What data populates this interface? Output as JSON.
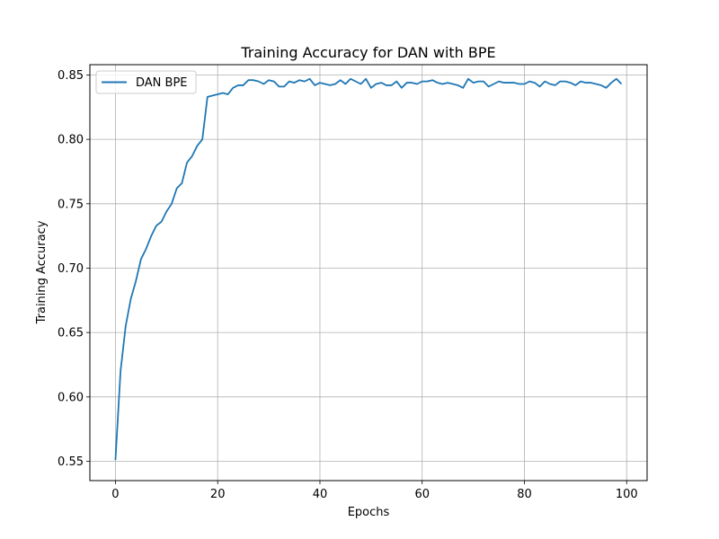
{
  "chart_data": {
    "type": "line",
    "title": "Training Accuracy for DAN with BPE",
    "xlabel": "Epochs",
    "ylabel": "Training Accuracy",
    "xlim": [
      -5,
      104
    ],
    "ylim": [
      0.535,
      0.858
    ],
    "xticks": [
      0,
      20,
      40,
      60,
      80,
      100
    ],
    "yticks": [
      0.55,
      0.6,
      0.65,
      0.7,
      0.75,
      0.8,
      0.85
    ],
    "grid": true,
    "legend_position": "top-left",
    "series": [
      {
        "name": "DAN BPE",
        "color": "#1f77b4",
        "x": [
          0,
          1,
          2,
          3,
          4,
          5,
          6,
          7,
          8,
          9,
          10,
          11,
          12,
          13,
          14,
          15,
          16,
          17,
          18,
          19,
          20,
          21,
          22,
          23,
          24,
          25,
          26,
          27,
          28,
          29,
          30,
          31,
          32,
          33,
          34,
          35,
          36,
          37,
          38,
          39,
          40,
          41,
          42,
          43,
          44,
          45,
          46,
          47,
          48,
          49,
          50,
          51,
          52,
          53,
          54,
          55,
          56,
          57,
          58,
          59,
          60,
          61,
          62,
          63,
          64,
          65,
          66,
          67,
          68,
          69,
          70,
          71,
          72,
          73,
          74,
          75,
          76,
          77,
          78,
          79,
          80,
          81,
          82,
          83,
          84,
          85,
          86,
          87,
          88,
          89,
          90,
          91,
          92,
          93,
          94,
          95,
          96,
          97,
          98,
          99
        ],
        "values": [
          0.551,
          0.62,
          0.655,
          0.676,
          0.69,
          0.707,
          0.715,
          0.725,
          0.733,
          0.736,
          0.744,
          0.75,
          0.762,
          0.766,
          0.782,
          0.787,
          0.795,
          0.8,
          0.833,
          0.834,
          0.835,
          0.836,
          0.835,
          0.84,
          0.842,
          0.842,
          0.846,
          0.846,
          0.845,
          0.843,
          0.846,
          0.845,
          0.841,
          0.841,
          0.845,
          0.844,
          0.846,
          0.845,
          0.847,
          0.842,
          0.844,
          0.843,
          0.842,
          0.843,
          0.846,
          0.843,
          0.847,
          0.845,
          0.843,
          0.847,
          0.84,
          0.843,
          0.844,
          0.842,
          0.842,
          0.845,
          0.84,
          0.844,
          0.844,
          0.843,
          0.845,
          0.845,
          0.846,
          0.844,
          0.843,
          0.844,
          0.843,
          0.842,
          0.84,
          0.847,
          0.844,
          0.845,
          0.845,
          0.841,
          0.843,
          0.845,
          0.844,
          0.844,
          0.844,
          0.843,
          0.843,
          0.845,
          0.844,
          0.841,
          0.845,
          0.843,
          0.842,
          0.845,
          0.845,
          0.844,
          0.842,
          0.845,
          0.844,
          0.844,
          0.843,
          0.842,
          0.84,
          0.844,
          0.847,
          0.843
        ]
      }
    ]
  }
}
